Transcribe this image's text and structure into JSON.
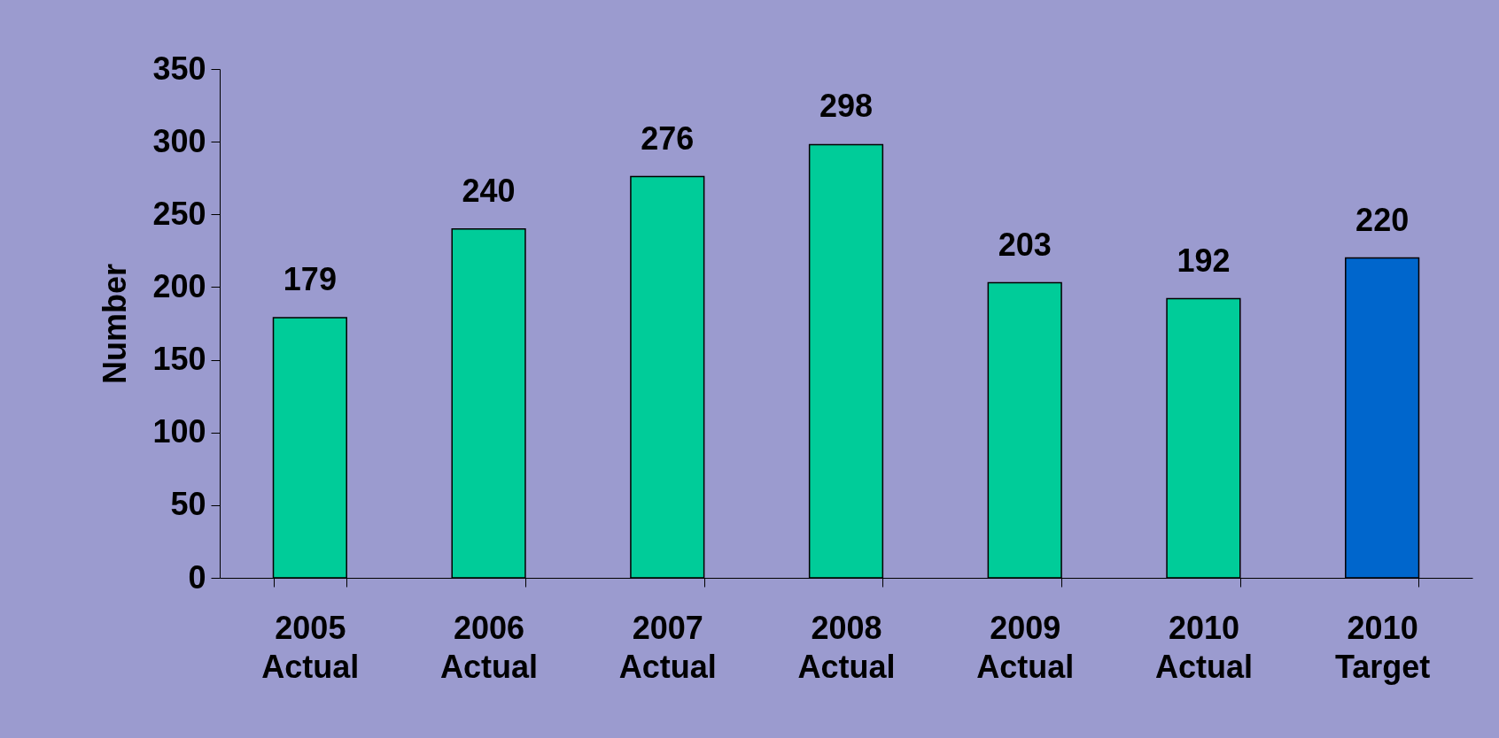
{
  "chart_data": {
    "type": "bar",
    "categories": [
      "2005\nActual",
      "2006\nActual",
      "2007\nActual",
      "2008\nActual",
      "2009\nActual",
      "2010\nActual",
      "2010\nTarget"
    ],
    "values": [
      179,
      240,
      276,
      298,
      203,
      192,
      220
    ],
    "colors": [
      "#00cc99",
      "#00cc99",
      "#00cc99",
      "#00cc99",
      "#00cc99",
      "#00cc99",
      "#0066cc"
    ],
    "ylabel": "Number",
    "ylim": [
      0,
      350
    ],
    "yticks": [
      0,
      50,
      100,
      150,
      200,
      250,
      300,
      350
    ],
    "data_labels": true,
    "grid": false
  }
}
